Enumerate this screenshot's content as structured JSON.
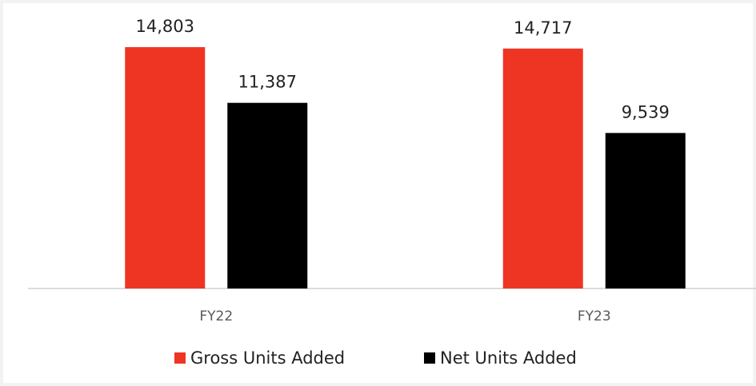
{
  "chart_data": {
    "type": "bar",
    "categories": [
      "FY22",
      "FY23"
    ],
    "series": [
      {
        "name": "Gross Units Added",
        "color": "#ee3524",
        "values": [
          14803,
          14717
        ],
        "value_labels": [
          "14,803",
          "14,717"
        ]
      },
      {
        "name": "Net Units Added",
        "color": "#000000",
        "values": [
          11387,
          9539
        ],
        "value_labels": [
          "11,387",
          "9,539"
        ]
      }
    ],
    "legend": "bottom"
  }
}
